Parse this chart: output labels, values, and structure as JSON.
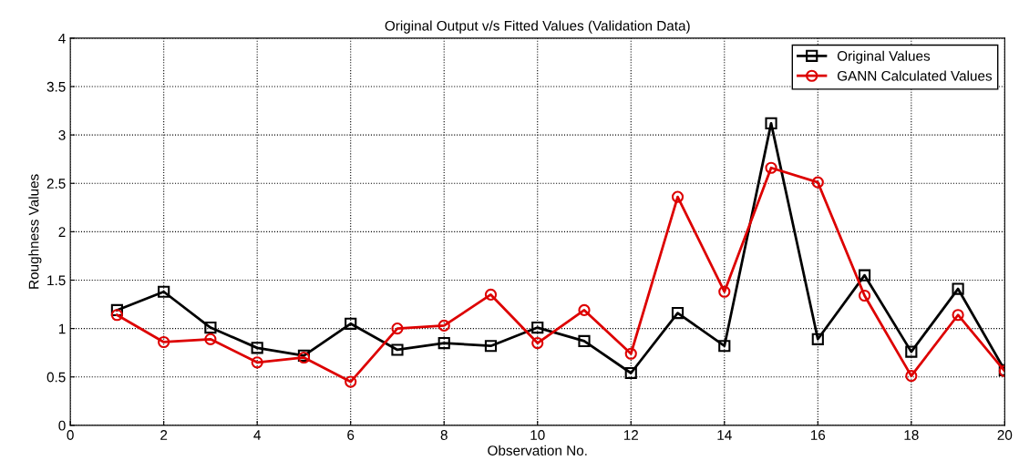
{
  "chart_data": {
    "type": "line",
    "title": "Original Output v/s Fitted Values (Validation Data)",
    "xlabel": "Observation No.",
    "ylabel": "Roughness Values",
    "x": [
      1,
      2,
      3,
      4,
      5,
      6,
      7,
      8,
      9,
      10,
      11,
      12,
      13,
      14,
      15,
      16,
      17,
      18,
      19,
      20
    ],
    "series": [
      {
        "name": "Original Values",
        "color": "#000000",
        "marker": "square",
        "values": [
          1.19,
          1.38,
          1.01,
          0.8,
          0.72,
          1.05,
          0.78,
          0.85,
          0.82,
          1.01,
          0.87,
          0.54,
          1.16,
          0.82,
          3.12,
          0.89,
          1.55,
          0.76,
          1.41,
          0.57
        ]
      },
      {
        "name": "GANN Calculated Values",
        "color": "#dd0000",
        "marker": "circle",
        "values": [
          1.14,
          0.86,
          0.89,
          0.65,
          0.7,
          0.45,
          1.0,
          1.03,
          1.35,
          0.85,
          1.19,
          0.74,
          2.36,
          1.38,
          2.66,
          2.51,
          1.34,
          0.51,
          1.14,
          0.56
        ]
      }
    ],
    "xlim": [
      0,
      20
    ],
    "xticks": [
      0,
      2,
      4,
      6,
      8,
      10,
      12,
      14,
      16,
      18,
      20
    ],
    "ylim": [
      0,
      4
    ],
    "yticks": [
      0,
      0.5,
      1,
      1.5,
      2,
      2.5,
      3,
      3.5,
      4
    ],
    "grid": true,
    "legend": "top right",
    "line_style": "solid"
  }
}
